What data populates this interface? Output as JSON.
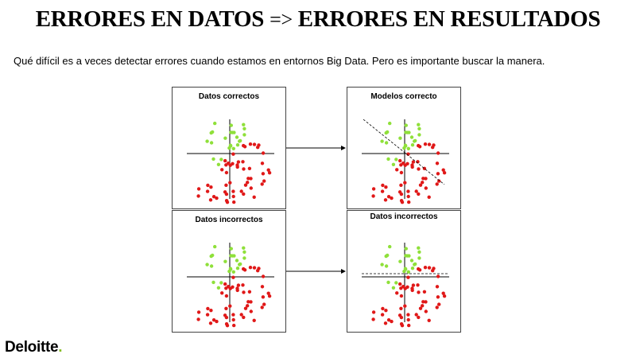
{
  "slide": {
    "title_part1": "ERRORES EN DATOS",
    "title_arrow": "=>",
    "title_part2": "ERRORES EN RESULTADOS",
    "body": "Qué difícil es a veces detectar errores cuando estamos en entornos Big Data. Pero es importante buscar la manera."
  },
  "panels": [
    {
      "title": "Datos correctos",
      "divider": "none"
    },
    {
      "title": "Modelos correcto",
      "divider": "diagonal"
    },
    {
      "title": "Datos incorrectos",
      "divider": "none"
    },
    {
      "title": "Datos incorrectos",
      "divider": "horizontal"
    }
  ],
  "colors": {
    "green": "#8fe03a",
    "red": "#e01818",
    "logo_dot": "#86bc25"
  },
  "logo": {
    "text": "Deloitte",
    "dot": "."
  }
}
